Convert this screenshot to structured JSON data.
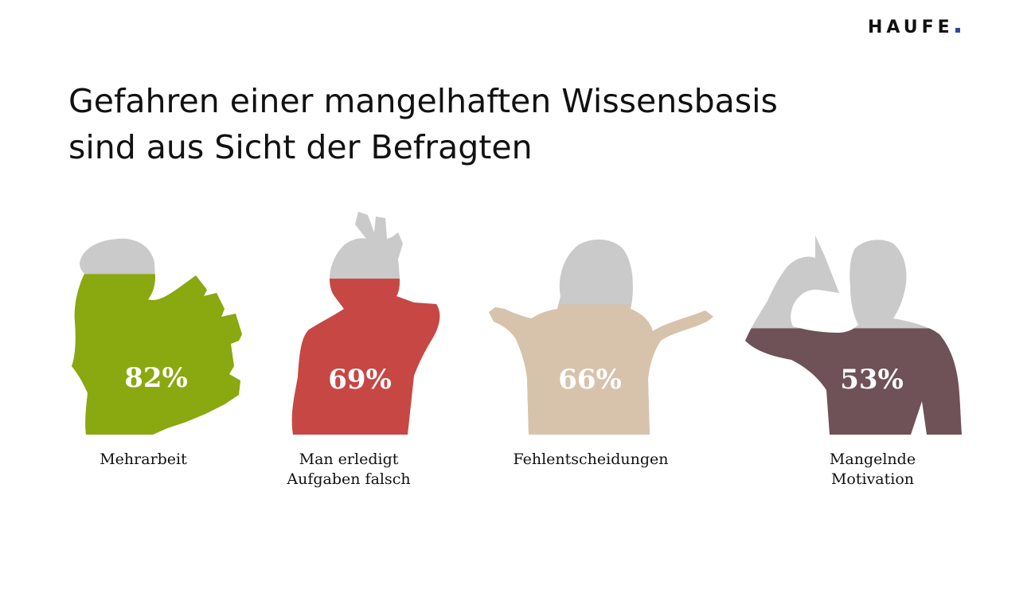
{
  "brand": {
    "logo_text": "HAUFE",
    "logo_dot_color": "#2e4a9e"
  },
  "title_lines": [
    "Gefahren einer mangelhaften Wissensbasis",
    "sind aus Sicht der Befragten"
  ],
  "colors": {
    "empty": "#cacaca"
  },
  "chart_data": {
    "type": "bar",
    "title": "Gefahren einer mangelhaften Wissensbasis sind aus Sicht der Befragten",
    "unit": "%",
    "ylim": [
      0,
      100
    ],
    "categories": [
      "Mehrarbeit",
      "Man erledigt Aufgaben falsch",
      "Fehlentscheidungen",
      "Mangelnde Motivation"
    ],
    "values": [
      82,
      69,
      66,
      53
    ],
    "value_labels": [
      "82%",
      "69%",
      "66%",
      "53%"
    ],
    "label_lines": [
      [
        "Mehrarbeit"
      ],
      [
        "Man erledigt",
        "Aufgaben falsch"
      ],
      [
        "Fehlentscheidungen"
      ],
      [
        "Mangelnde",
        "Motivation"
      ]
    ],
    "colors": [
      "#8aa80f",
      "#c74744",
      "#d7c3ac",
      "#6e5258"
    ]
  }
}
